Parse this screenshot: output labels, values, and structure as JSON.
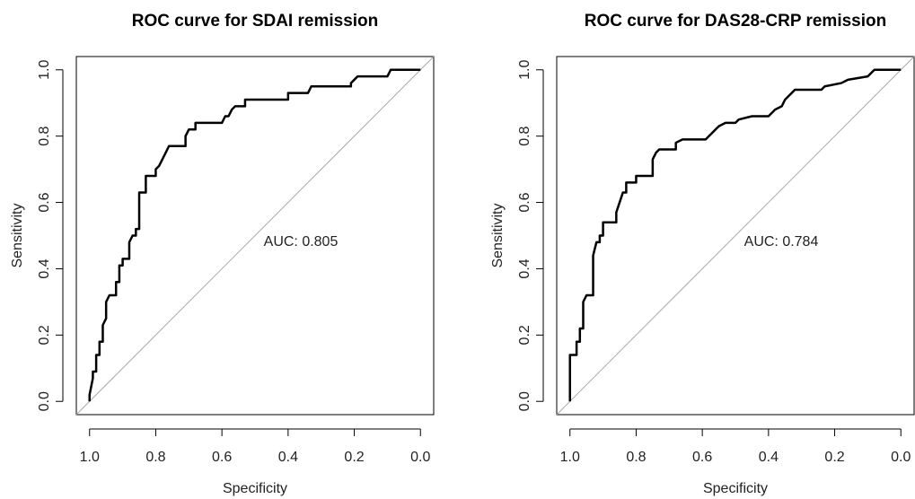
{
  "chart_data": [
    {
      "type": "line",
      "title": "ROC curve for SDAI remission",
      "xlabel": "Specificity",
      "ylabel": "Sensitivity",
      "annotation": "AUC: 0.805",
      "color": "#000000",
      "xlim": [
        1.04,
        -0.04
      ],
      "ylim": [
        -0.04,
        1.04
      ],
      "xticks": [
        {
          "value": 1,
          "label": "1.0"
        },
        0.8,
        0.6,
        0.4,
        0.2,
        {
          "value": 0,
          "label": "0.0"
        }
      ],
      "yticks": [
        {
          "value": 0,
          "label": "0.0"
        },
        0.2,
        0.4,
        0.6,
        0.8,
        {
          "value": 1,
          "label": "1.0"
        }
      ],
      "x": [
        1.0,
        1.0,
        0.99,
        0.99,
        0.98,
        0.98,
        0.97,
        0.97,
        0.96,
        0.96,
        0.95,
        0.95,
        0.94,
        0.92,
        0.92,
        0.91,
        0.91,
        0.9,
        0.9,
        0.88,
        0.88,
        0.87,
        0.86,
        0.86,
        0.85,
        0.85,
        0.83,
        0.83,
        0.8,
        0.8,
        0.79,
        0.78,
        0.77,
        0.76,
        0.71,
        0.71,
        0.7,
        0.68,
        0.68,
        0.6,
        0.59,
        0.58,
        0.57,
        0.56,
        0.53,
        0.53,
        0.4,
        0.4,
        0.34,
        0.33,
        0.21,
        0.21,
        0.19,
        0.1,
        0.09,
        0.0
      ],
      "values": [
        0,
        0.02,
        0.07,
        0.09,
        0.09,
        0.14,
        0.14,
        0.18,
        0.18,
        0.23,
        0.25,
        0.3,
        0.32,
        0.32,
        0.36,
        0.36,
        0.41,
        0.41,
        0.43,
        0.43,
        0.48,
        0.5,
        0.5,
        0.52,
        0.52,
        0.63,
        0.63,
        0.68,
        0.68,
        0.7,
        0.71,
        0.73,
        0.75,
        0.77,
        0.77,
        0.8,
        0.82,
        0.82,
        0.84,
        0.84,
        0.86,
        0.86,
        0.88,
        0.89,
        0.89,
        0.91,
        0.91,
        0.93,
        0.93,
        0.95,
        0.95,
        0.96,
        0.98,
        0.98,
        1.0,
        1.0
      ]
    },
    {
      "type": "line",
      "title": "ROC curve for DAS28-CRP remission",
      "xlabel": "Specificity",
      "ylabel": "Sensitivity",
      "annotation": "AUC: 0.784",
      "color": "#000000",
      "xlim": [
        1.04,
        -0.04
      ],
      "ylim": [
        -0.04,
        1.04
      ],
      "xticks": [
        {
          "value": 1,
          "label": "1.0"
        },
        0.8,
        0.6,
        0.4,
        0.2,
        {
          "value": 0,
          "label": "0.0"
        }
      ],
      "yticks": [
        {
          "value": 0,
          "label": "0.0"
        },
        0.2,
        0.4,
        0.6,
        0.8,
        {
          "value": 1,
          "label": "1.0"
        }
      ],
      "x": [
        1.0,
        1.0,
        0.98,
        0.98,
        0.97,
        0.97,
        0.96,
        0.96,
        0.95,
        0.93,
        0.93,
        0.92,
        0.91,
        0.91,
        0.9,
        0.9,
        0.86,
        0.86,
        0.85,
        0.84,
        0.83,
        0.83,
        0.8,
        0.8,
        0.75,
        0.75,
        0.74,
        0.73,
        0.68,
        0.68,
        0.66,
        0.59,
        0.57,
        0.56,
        0.55,
        0.53,
        0.5,
        0.49,
        0.45,
        0.4,
        0.38,
        0.36,
        0.35,
        0.33,
        0.32,
        0.24,
        0.23,
        0.18,
        0.16,
        0.1,
        0.08,
        0.0
      ],
      "values": [
        0,
        0.14,
        0.14,
        0.18,
        0.18,
        0.22,
        0.22,
        0.3,
        0.32,
        0.32,
        0.44,
        0.48,
        0.48,
        0.5,
        0.5,
        0.54,
        0.54,
        0.57,
        0.6,
        0.63,
        0.63,
        0.66,
        0.66,
        0.68,
        0.68,
        0.73,
        0.75,
        0.76,
        0.76,
        0.78,
        0.79,
        0.79,
        0.81,
        0.82,
        0.83,
        0.84,
        0.84,
        0.85,
        0.86,
        0.86,
        0.88,
        0.89,
        0.91,
        0.93,
        0.94,
        0.94,
        0.95,
        0.96,
        0.97,
        0.98,
        1.0,
        1.0
      ]
    }
  ]
}
